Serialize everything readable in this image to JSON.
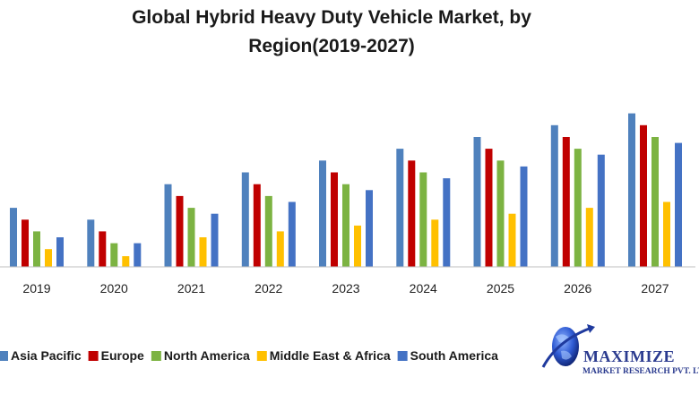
{
  "chart_data": {
    "type": "bar",
    "title_line1": "Global Hybrid Heavy Duty Vehicle Market, by",
    "title_line2": "Region(2019-2027)",
    "categories": [
      "2019",
      "2020",
      "2021",
      "2022",
      "2023",
      "2024",
      "2025",
      "2026",
      "2027"
    ],
    "series": [
      {
        "name": "Asia Pacific",
        "color": "#4f81bd",
        "values": [
          5.0,
          4.0,
          7.0,
          8.0,
          9.0,
          10.0,
          11.0,
          12.0,
          13.0
        ]
      },
      {
        "name": "Europe",
        "color": "#c00000",
        "values": [
          4.0,
          3.0,
          6.0,
          7.0,
          8.0,
          9.0,
          10.0,
          11.0,
          12.0
        ]
      },
      {
        "name": "North America",
        "color": "#7cb342",
        "values": [
          3.0,
          2.0,
          5.0,
          6.0,
          7.0,
          8.0,
          9.0,
          10.0,
          11.0
        ]
      },
      {
        "name": "Middle East & Africa",
        "color": "#ffc000",
        "values": [
          1.5,
          0.9,
          2.5,
          3.0,
          3.5,
          4.0,
          4.5,
          5.0,
          5.5
        ]
      },
      {
        "name": "South America",
        "color": "#4472c4",
        "values": [
          2.5,
          2.0,
          4.5,
          5.5,
          6.5,
          7.5,
          8.5,
          9.5,
          10.5
        ]
      }
    ],
    "ylim": [
      0,
      13.5
    ],
    "grid": false,
    "legend_position": "bottom"
  },
  "logo": {
    "name": "MAXIMIZE",
    "subtitle": "MARKET RESEARCH PVT. LTD."
  }
}
